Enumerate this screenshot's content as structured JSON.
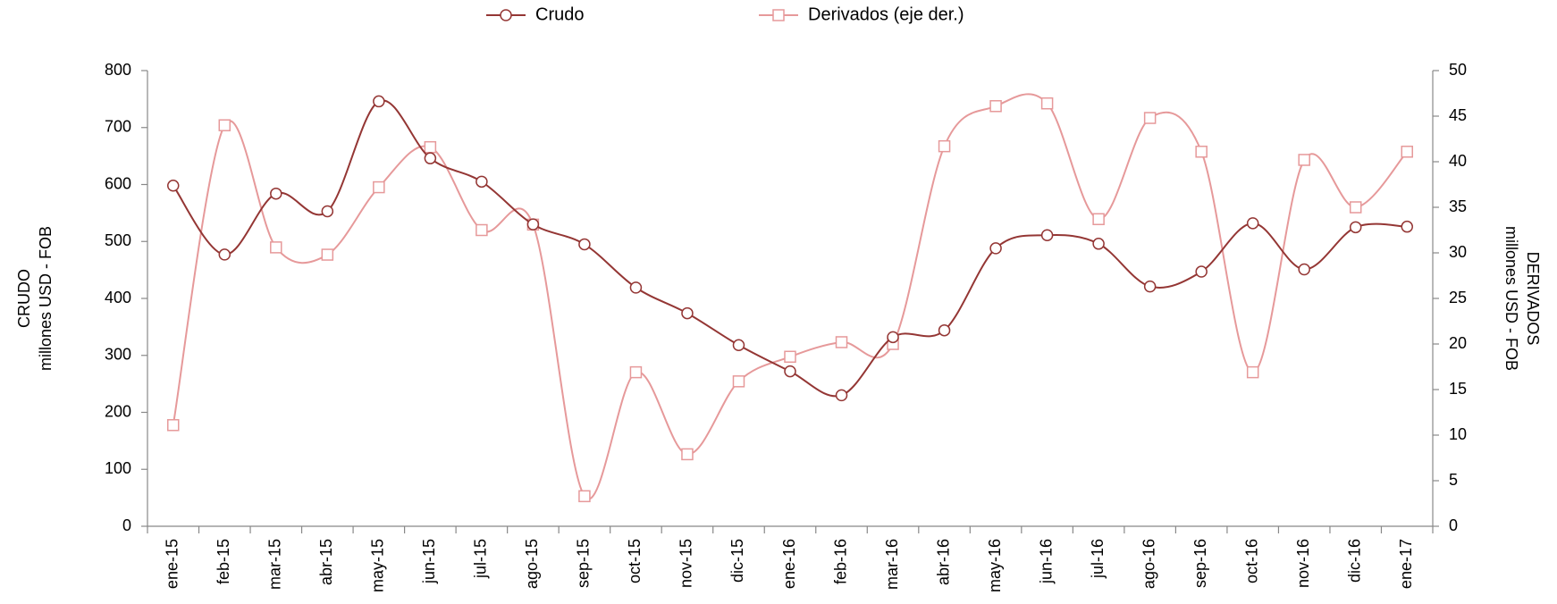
{
  "chart_data": {
    "type": "line",
    "categories": [
      "ene-15",
      "feb-15",
      "mar-15",
      "abr-15",
      "may-15",
      "jun-15",
      "jul-15",
      "ago-15",
      "sep-15",
      "oct-15",
      "nov-15",
      "dic-15",
      "ene-16",
      "feb-16",
      "mar-16",
      "abr-16",
      "may-16",
      "jun-16",
      "jul-16",
      "ago-16",
      "sep-16",
      "oct-16",
      "nov-16",
      "dic-16",
      "ene-17"
    ],
    "series": [
      {
        "name": "Crudo",
        "color": "#943634",
        "marker": "circle",
        "values": [
          598,
          477,
          584,
          553,
          746,
          646,
          605,
          530,
          495,
          419,
          374,
          318,
          272,
          230,
          332,
          344,
          488,
          511,
          496,
          421,
          447,
          532,
          451,
          525,
          526
        ]
      },
      {
        "name": "Derivados (eje der.)",
        "color": "#e6999a",
        "marker": "square",
        "axis": "y2",
        "values": [
          11.1,
          44.0,
          30.6,
          29.8,
          37.2,
          41.6,
          32.5,
          33.1,
          3.3,
          16.9,
          7.9,
          15.9,
          18.6,
          20.2,
          20.0,
          41.7,
          46.1,
          46.4,
          33.7,
          44.8,
          41.1,
          16.9,
          40.2,
          35.0,
          41.1
        ]
      }
    ],
    "ylabel": [
      "CRUDO",
      "millones USD - FOB"
    ],
    "y2label": [
      "DERIVADOS",
      "millones USD - FOB"
    ],
    "ylim": [
      0,
      800
    ],
    "yticks": [
      0,
      100,
      200,
      300,
      400,
      500,
      600,
      700,
      800
    ],
    "y2lim": [
      0,
      50
    ],
    "y2ticks": [
      0,
      5,
      10,
      15,
      20,
      25,
      30,
      35,
      40,
      45,
      50
    ],
    "legend": "top",
    "smooth": true
  }
}
